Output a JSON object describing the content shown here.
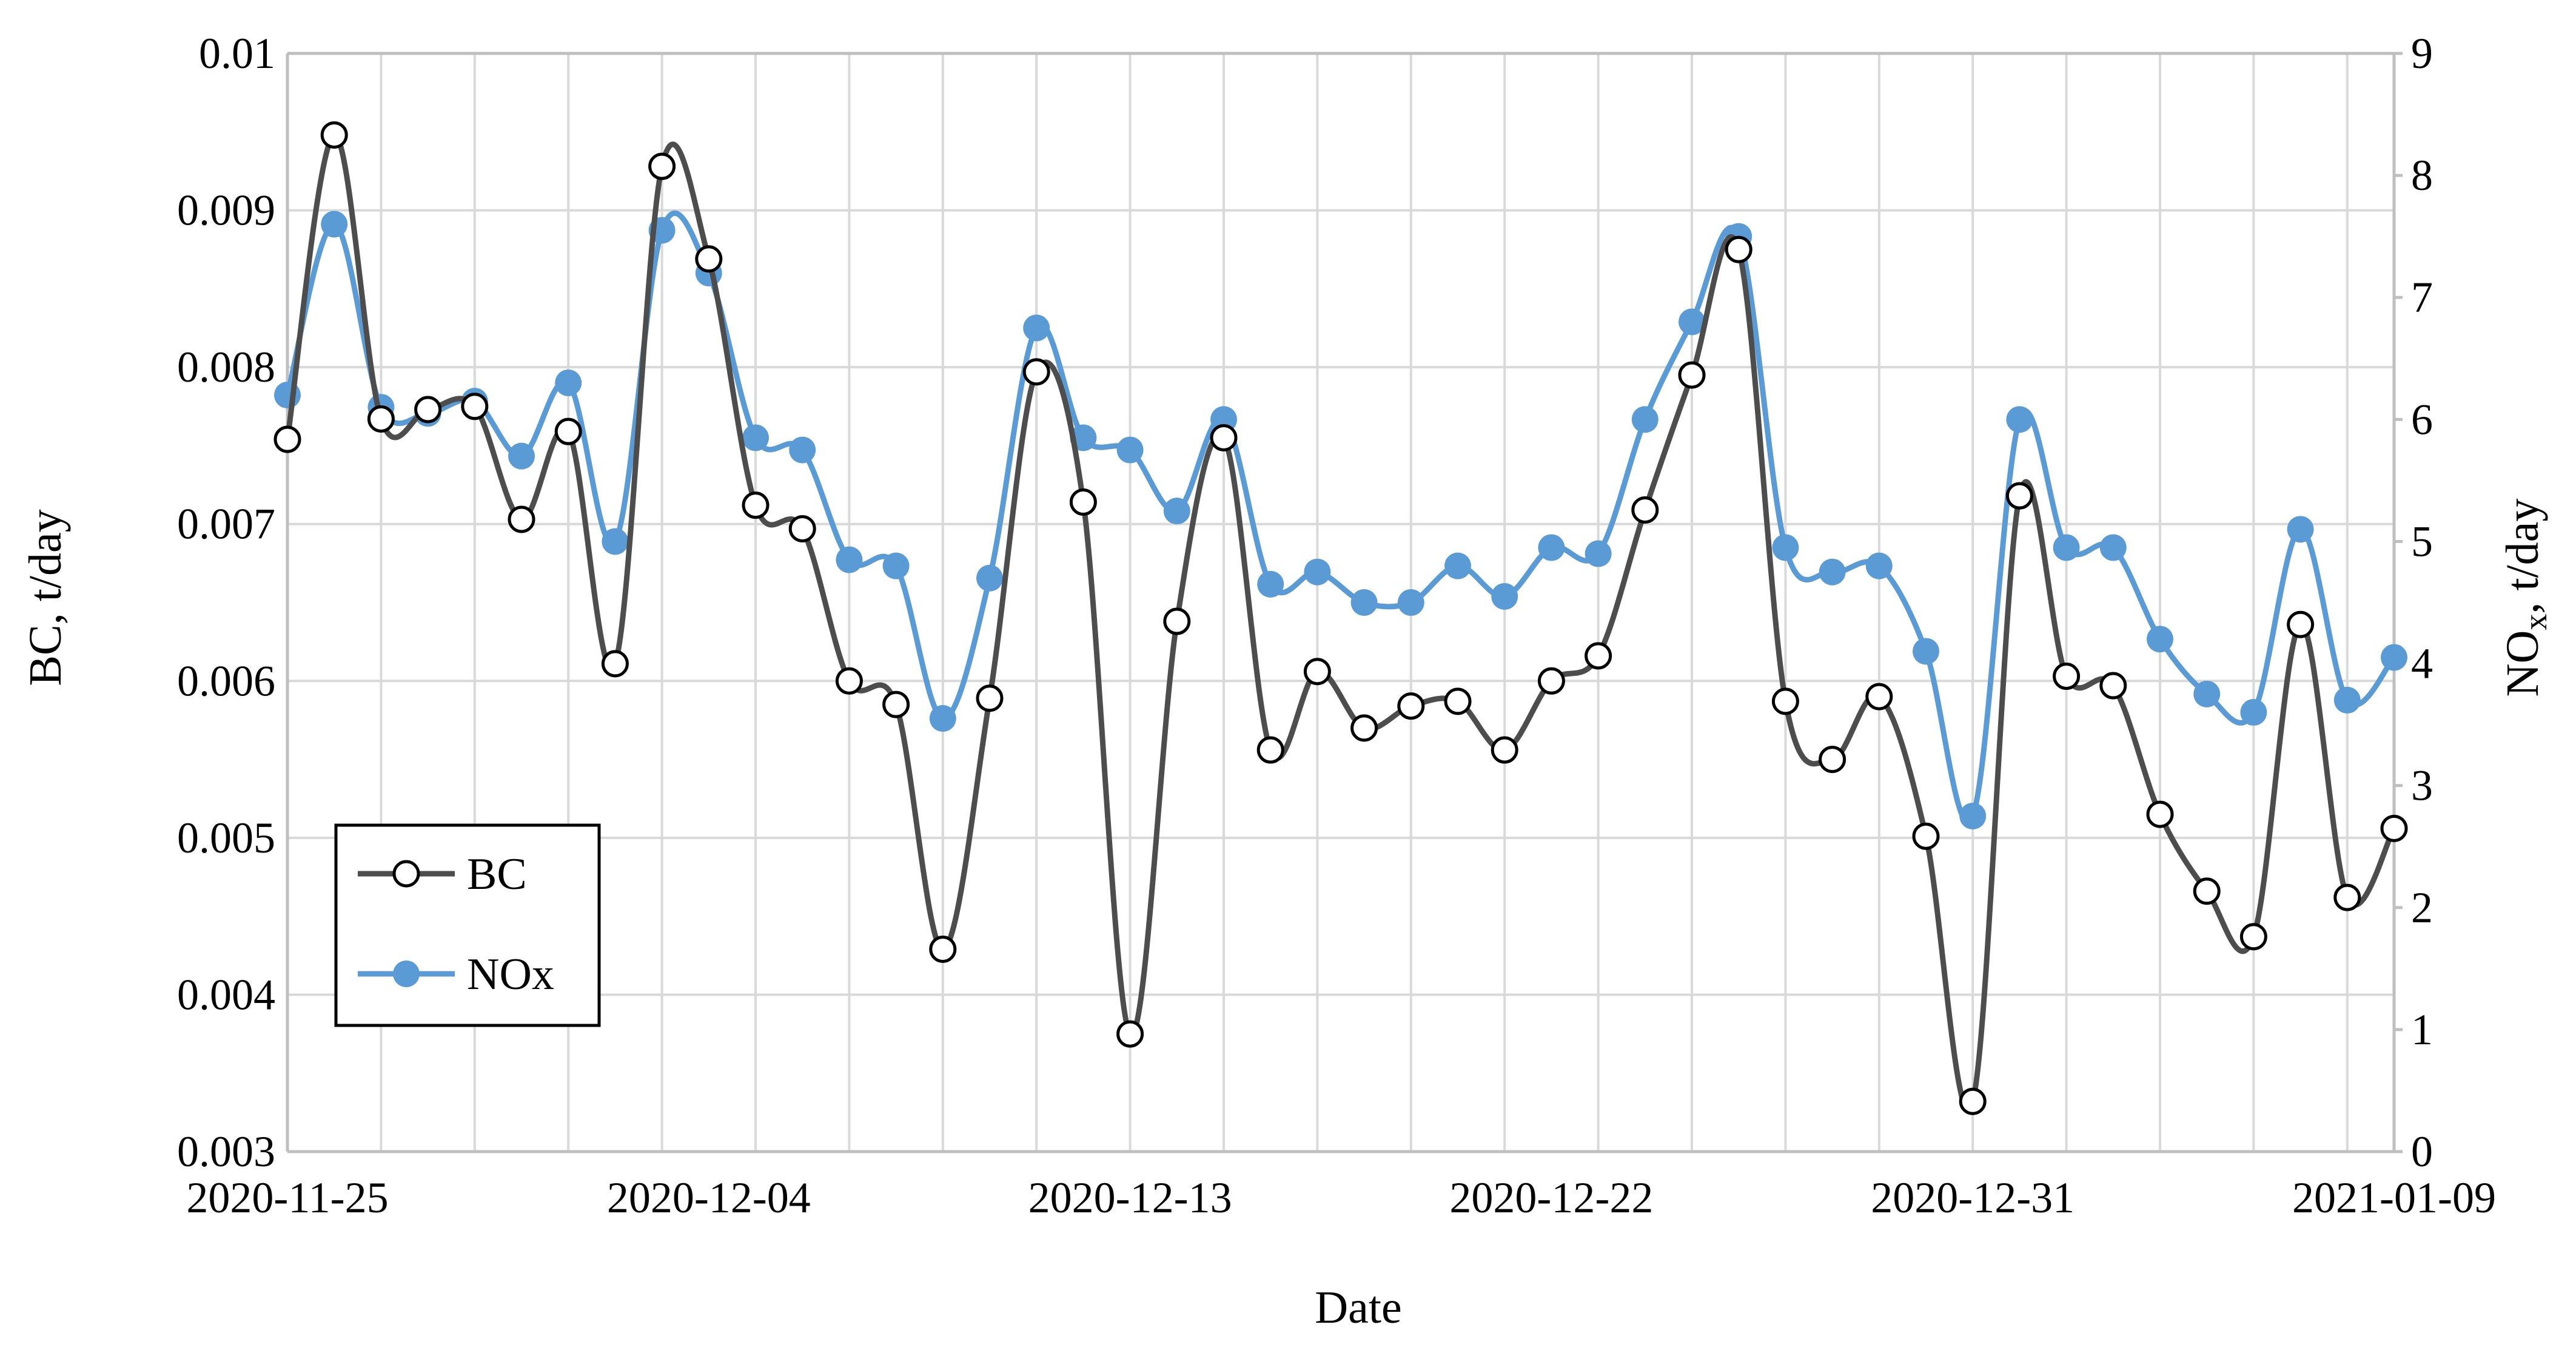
{
  "chart_data": {
    "type": "line",
    "x": [
      "2020-11-25",
      "2020-11-26",
      "2020-11-27",
      "2020-11-28",
      "2020-11-29",
      "2020-11-30",
      "2020-12-01",
      "2020-12-02",
      "2020-12-03",
      "2020-12-04",
      "2020-12-05",
      "2020-12-06",
      "2020-12-07",
      "2020-12-08",
      "2020-12-09",
      "2020-12-10",
      "2020-12-11",
      "2020-12-12",
      "2020-12-13",
      "2020-12-14",
      "2020-12-15",
      "2020-12-16",
      "2020-12-17",
      "2020-12-18",
      "2020-12-19",
      "2020-12-20",
      "2020-12-21",
      "2020-12-22",
      "2020-12-23",
      "2020-12-24",
      "2020-12-25",
      "2020-12-26",
      "2020-12-27",
      "2020-12-28",
      "2020-12-29",
      "2020-12-30",
      "2020-12-31",
      "2021-01-01",
      "2021-01-02",
      "2021-01-03",
      "2021-01-04",
      "2021-01-05",
      "2021-01-06",
      "2021-01-07",
      "2021-01-08",
      "2021-01-09"
    ],
    "x_tick_labels": [
      "2020-11-25",
      "2020-12-04",
      "2020-12-13",
      "2020-12-22",
      "2020-12-31",
      "2021-01-09"
    ],
    "xlabel": "Date",
    "ylabel_left": "BC, t/day",
    "ylabel_right": "NOx, t/day",
    "ylim_left": [
      0.003,
      0.01
    ],
    "ylim_right": [
      0,
      9
    ],
    "yticks_left": [
      "0.003",
      "0.004",
      "0.005",
      "0.006",
      "0.007",
      "0.008",
      "0.009",
      "0.01"
    ],
    "yticks_right": [
      "0",
      "1",
      "2",
      "3",
      "4",
      "5",
      "6",
      "7",
      "8",
      "9"
    ],
    "grid": true,
    "legend_position": "bottom-left",
    "series": [
      {
        "name": "BC",
        "axis": "left",
        "color": "#4d4d4d",
        "marker": "open-circle",
        "values": [
          0.00754,
          0.00948,
          0.00767,
          0.00773,
          0.00775,
          0.00703,
          0.00759,
          0.00611,
          0.00928,
          0.00869,
          0.00712,
          0.00697,
          0.006,
          0.00585,
          0.00429,
          0.00589,
          0.00797,
          0.00714,
          0.00375,
          0.00638,
          0.00755,
          0.00556,
          0.00606,
          0.0057,
          0.00584,
          0.00587,
          0.00556,
          0.006,
          0.00616,
          0.00709,
          0.00795,
          0.00875,
          0.00587,
          0.0055,
          0.0059,
          0.00501,
          0.00332,
          0.00718,
          0.00603,
          0.00597,
          0.00515,
          0.00466,
          0.00437,
          0.00636,
          0.00462,
          0.00506
        ]
      },
      {
        "name": "NOx",
        "axis": "right",
        "color": "#5b9bd5",
        "marker": "filled-circle",
        "values": [
          6.2,
          7.6,
          6.1,
          6.05,
          6.15,
          5.7,
          6.3,
          5.0,
          7.55,
          7.2,
          5.85,
          5.75,
          4.85,
          4.8,
          3.55,
          4.7,
          6.75,
          5.85,
          5.75,
          5.25,
          6.0,
          4.65,
          4.75,
          4.5,
          4.5,
          4.8,
          4.55,
          4.95,
          4.9,
          6.0,
          6.8,
          7.5,
          4.95,
          4.75,
          4.8,
          4.1,
          2.75,
          6.0,
          4.95,
          4.95,
          4.2,
          3.75,
          3.6,
          5.1,
          3.7,
          4.05
        ]
      }
    ]
  }
}
